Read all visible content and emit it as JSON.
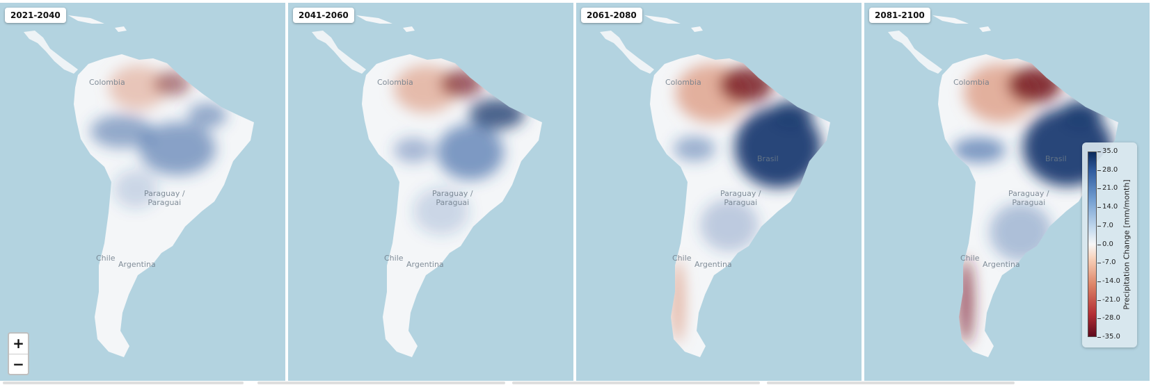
{
  "panels": [
    {
      "period": "2021-2040",
      "labels": {
        "colombia": "Colombia",
        "paraguay": "Paraguay /\nParaguai",
        "chile": "Chile",
        "argentina": "Argentina",
        "brasil": ""
      }
    },
    {
      "period": "2041-2060",
      "labels": {
        "colombia": "Colombia",
        "paraguay": "Paraguay /\nParaguai",
        "chile": "Chile",
        "argentina": "Argentina",
        "brasil": ""
      }
    },
    {
      "period": "2061-2080",
      "labels": {
        "colombia": "Colombia",
        "paraguay": "Paraguay /\nParaguai",
        "chile": "Chile",
        "argentina": "Argentina",
        "brasil": "Brasil"
      }
    },
    {
      "period": "2081-2100",
      "labels": {
        "colombia": "Colombia",
        "paraguay": "Paraguay /\nParaguai",
        "chile": "Chile",
        "argentina": "Argentina",
        "brasil": "Brasil"
      }
    }
  ],
  "zoom": {
    "in": "+",
    "out": "−"
  },
  "legend": {
    "title": "Precipitation Change [mm/month]",
    "ticks": [
      "35.0",
      "28.0",
      "21.0",
      "14.0",
      "7.0",
      "0.0",
      "-7.0",
      "-14.0",
      "-21.0",
      "-28.0",
      "-35.0"
    ],
    "max": 35,
    "min": -35
  },
  "colors": {
    "ocean": "#b3d3e0",
    "land": "#f4f6f8",
    "wet": "#2f5b9e",
    "very_wet": "#1f3d72",
    "dry": "#d98a6c",
    "very_dry": "#7a1e26"
  }
}
